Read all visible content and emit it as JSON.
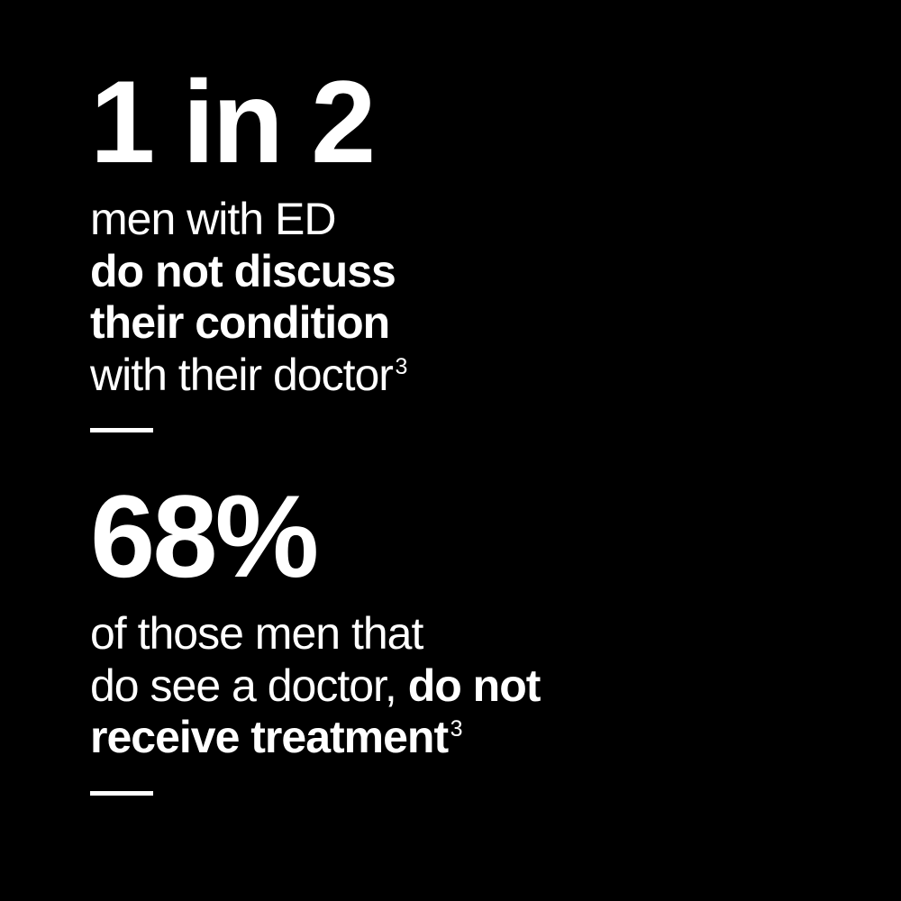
{
  "background_color": "#000000",
  "text_color": "#ffffff",
  "blocks": [
    {
      "headline": "1 in 2",
      "desc_line1": "men with ED",
      "desc_bold1": "do not discuss",
      "desc_bold2": "their condition",
      "desc_line3": "with their doctor",
      "citation": "3",
      "headline_fontsize": 130,
      "desc_fontsize": 50,
      "headline_weight": 800,
      "bold_weight": 700,
      "normal_weight": 400
    },
    {
      "headline": "68%",
      "desc_line1": "of those men that",
      "desc_line2_pre": "do see a doctor, ",
      "desc_bold1": "do not",
      "desc_bold2": "receive treatment",
      "citation": "3",
      "headline_fontsize": 130,
      "desc_fontsize": 50,
      "headline_weight": 800,
      "bold_weight": 700,
      "normal_weight": 400
    }
  ],
  "divider": {
    "width": 70,
    "height": 5,
    "color": "#ffffff"
  }
}
